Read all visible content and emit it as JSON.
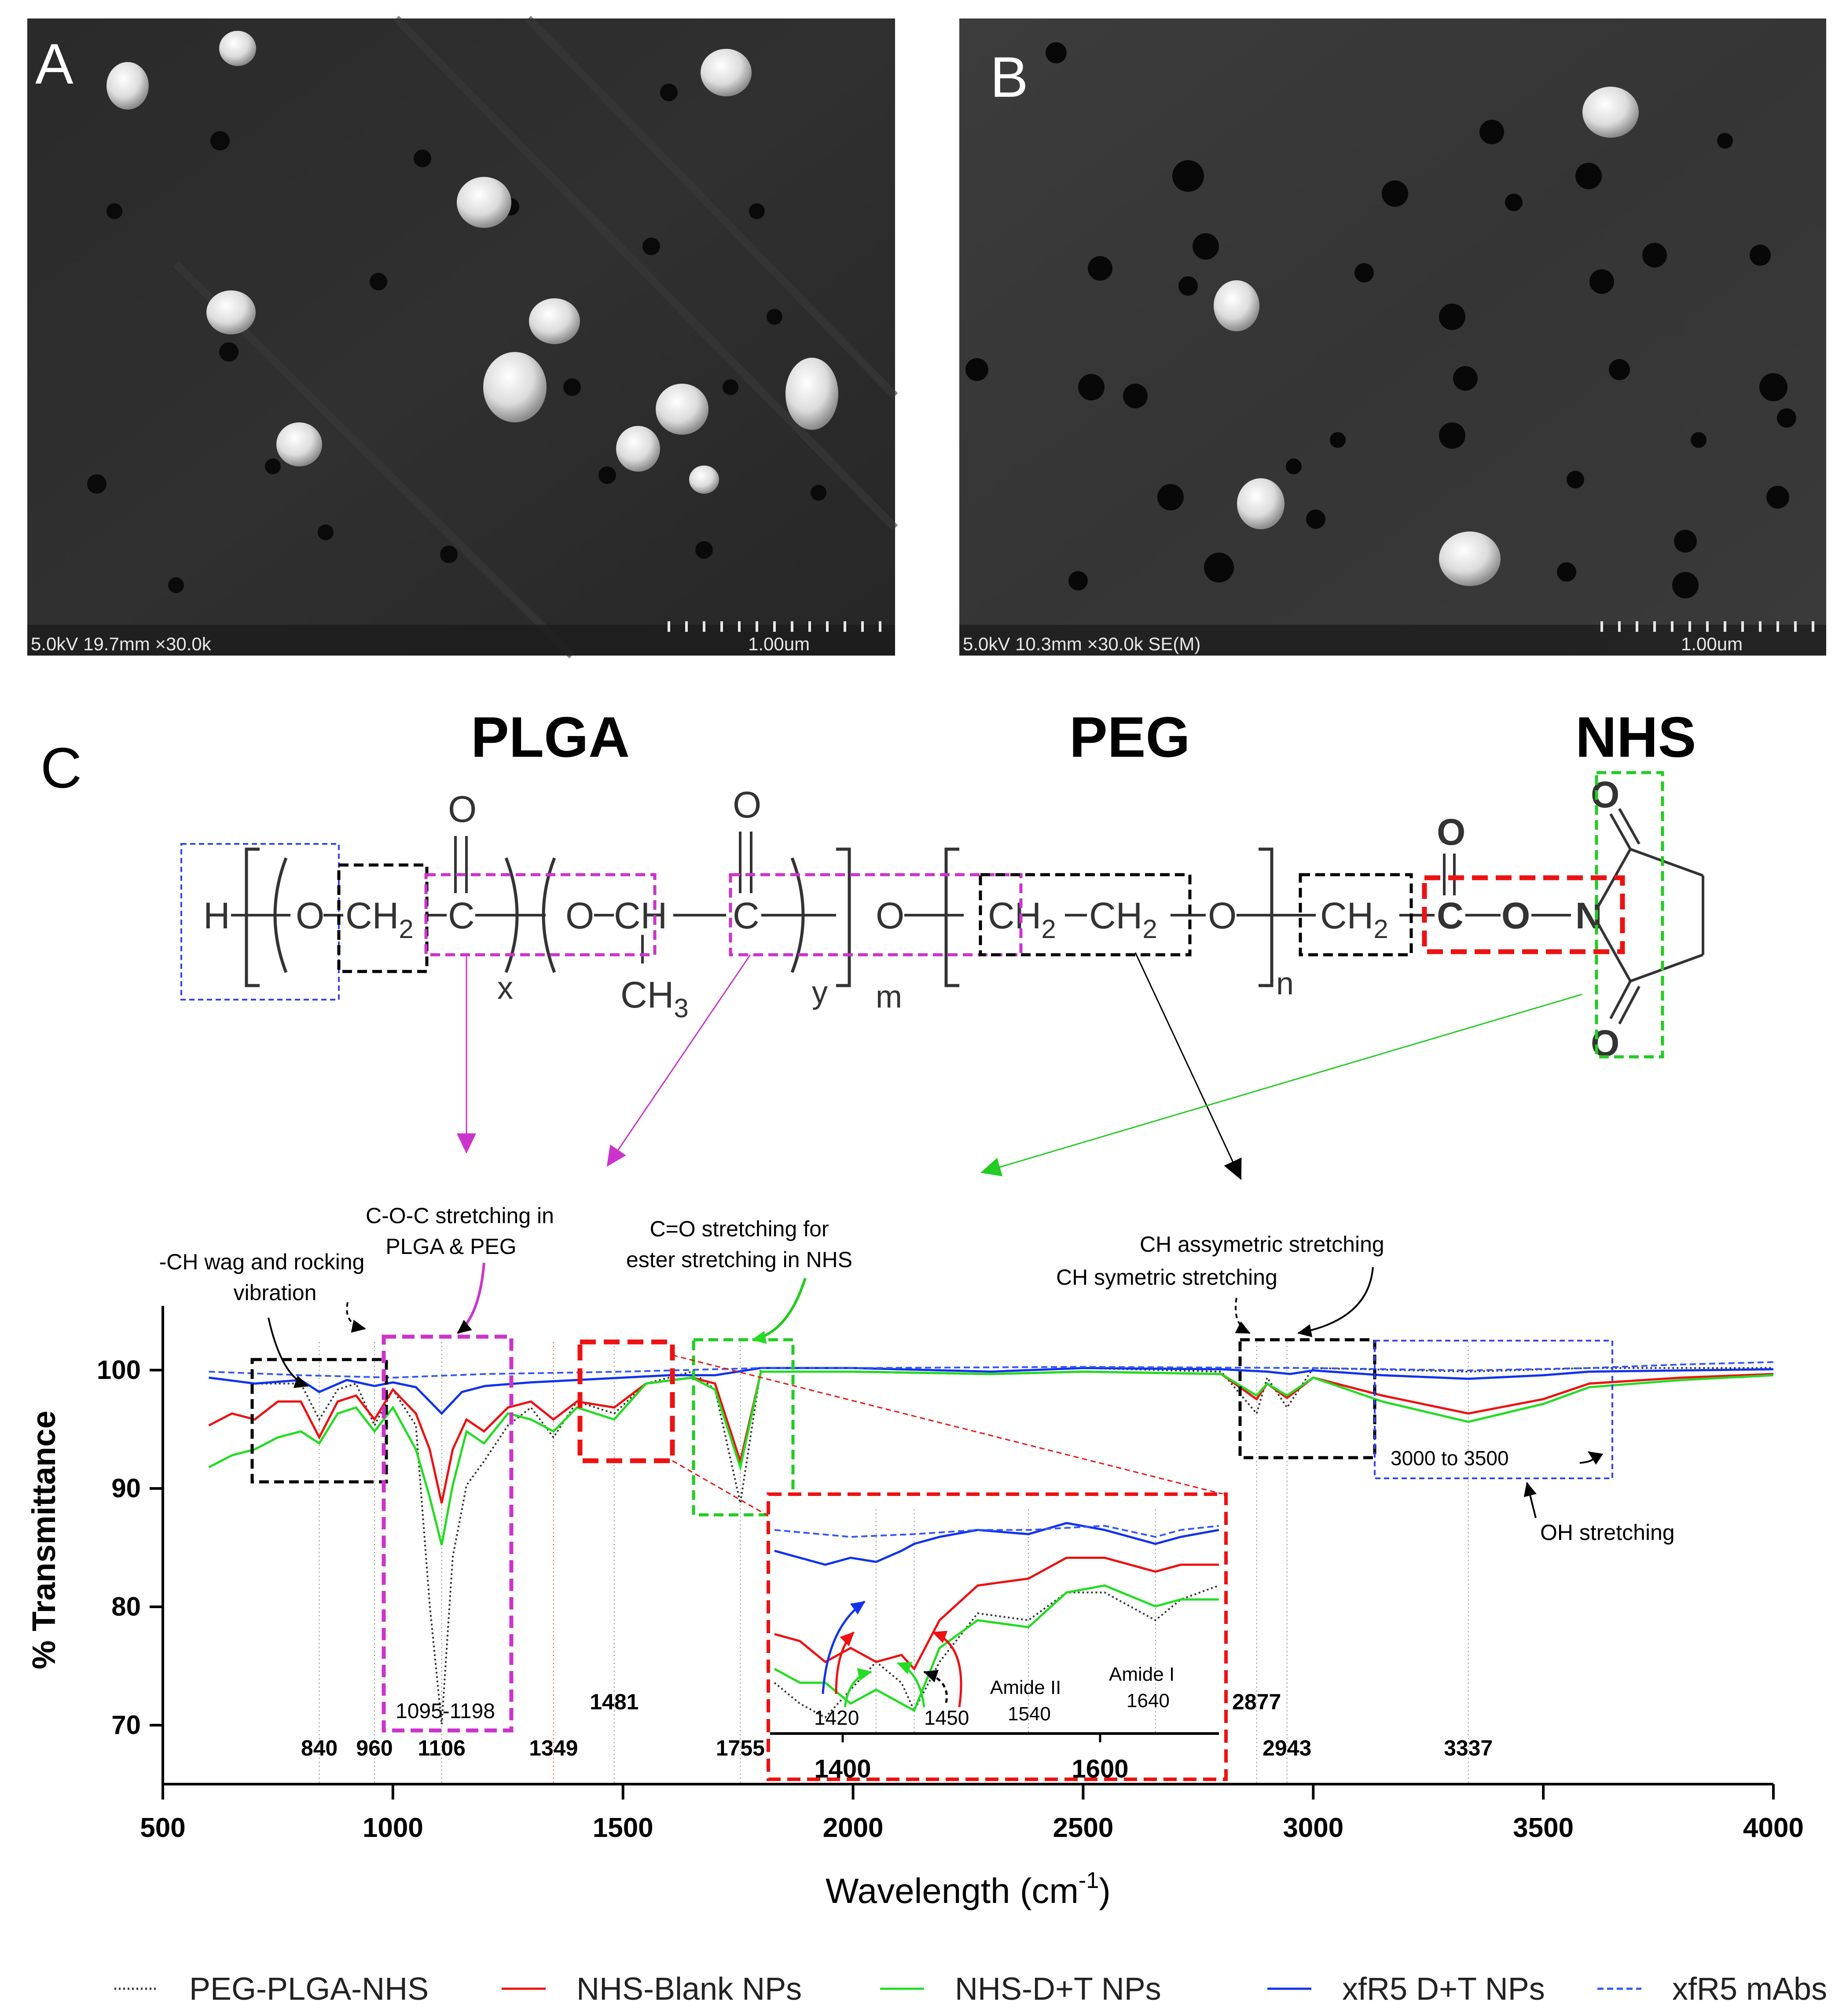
{
  "panels": {
    "a": {
      "letter": "A",
      "footer": "5.0kV 19.7mm ×30.0k",
      "scale_label": "1.00um"
    },
    "b": {
      "letter": "B",
      "footer": "5.0kV 10.3mm ×30.0k SE(M)",
      "scale_label": "1.00um"
    },
    "c": {
      "letter": "C"
    }
  },
  "structure": {
    "block_labels": [
      "PLGA",
      "PEG",
      "NHS"
    ],
    "atoms": {
      "H": "H",
      "O": "O",
      "CH2": "CH",
      "sub2": "2",
      "C": "C",
      "CH": "CH",
      "CH3": "CH",
      "sub3": "3",
      "N": "N",
      "x": "x",
      "y": "y",
      "m": "m",
      "n": "n"
    }
  },
  "annotations": {
    "ch_wag": [
      "-CH wag and rocking",
      "vibration"
    ],
    "coc": [
      "C-O-C stretching in",
      "PLGA & PEG"
    ],
    "co_ester": [
      "C=O stretching for",
      "ester stretching in NHS"
    ],
    "ch_asym": "CH assymetric stretching",
    "ch_sym": "CH symetric stretching",
    "range_3000": "3000 to 3500",
    "oh": "OH stretching",
    "range_1095": "1095-1198",
    "peaks": [
      "840",
      "960",
      "1106",
      "1349",
      "1481",
      "1755",
      "2877",
      "2943",
      "3337"
    ],
    "inset": {
      "peaks": [
        "1420",
        "1450"
      ],
      "amide2": "Amide II",
      "amide2_v": "1540",
      "amide1": "Amide I",
      "amide1_v": "1640",
      "ticks": [
        "1400",
        "1600"
      ]
    }
  },
  "colors": {
    "peg_plga_nhs": "#333333",
    "nhs_blank": "#ee1111",
    "nhs_dt": "#22dd22",
    "xfr5_dt": "#1133ee",
    "xfr5_mabs": "#3355ff",
    "magenta": "#cc33cc",
    "blue_box": "#3344ee"
  },
  "chart_data": {
    "type": "line",
    "xlabel": "Wavelength (cm",
    "xlabel_sup": "-1",
    "xlabel_end": ")",
    "ylabel": "% Transmittance",
    "xlim": [
      500,
      4000
    ],
    "ylim": [
      65,
      105
    ],
    "xticks": [
      500,
      1000,
      1500,
      2000,
      2500,
      3000,
      3500,
      4000
    ],
    "yticks": [
      70,
      80,
      90,
      100
    ],
    "legend_position": "bottom",
    "series": [
      {
        "name": "PEG-PLGA-NHS",
        "style": "dotted",
        "x": [
          600,
          700,
          800,
          840,
          880,
          920,
          960,
          1000,
          1050,
          1080,
          1106,
          1130,
          1160,
          1198,
          1250,
          1300,
          1349,
          1400,
          1481,
          1550,
          1650,
          1700,
          1755,
          1800,
          2000,
          2300,
          2500,
          2800,
          2877,
          2900,
          2943,
          3000,
          3337,
          3600,
          3800,
          4000
        ],
        "y": [
          99,
          98.5,
          98.5,
          95.5,
          98,
          98.5,
          95,
          98,
          95,
          80,
          70,
          84,
          90,
          92,
          95,
          96.5,
          94,
          97,
          96,
          98.5,
          99.5,
          98,
          88.5,
          99.8,
          99.8,
          99.5,
          99.8,
          99.5,
          96,
          99,
          96.5,
          99.8,
          99.5,
          99.8,
          99.8,
          99.8
        ]
      },
      {
        "name": "NHS-Blank NPs",
        "style": "solid",
        "x": [
          600,
          650,
          700,
          750,
          800,
          840,
          880,
          920,
          960,
          1000,
          1050,
          1080,
          1106,
          1130,
          1160,
          1198,
          1250,
          1300,
          1349,
          1400,
          1481,
          1550,
          1650,
          1700,
          1755,
          1800,
          2000,
          2300,
          2500,
          2800,
          2877,
          2900,
          2943,
          3000,
          3150,
          3337,
          3500,
          3600,
          3800,
          4000
        ],
        "y": [
          95,
          96,
          95.5,
          97,
          97,
          94,
          97,
          97.5,
          95.5,
          98,
          96,
          93,
          88.5,
          93,
          95.5,
          94.5,
          96.5,
          97,
          95.5,
          97,
          96.5,
          98.5,
          99,
          98.5,
          92,
          99.5,
          99.5,
          99.3,
          99.5,
          99.3,
          97.2,
          98.5,
          97.3,
          99,
          97.5,
          96,
          97.2,
          98.5,
          99,
          99.3
        ]
      },
      {
        "name": "NHS-D+T NPs",
        "style": "solid",
        "x": [
          600,
          650,
          700,
          750,
          800,
          840,
          880,
          920,
          960,
          1000,
          1050,
          1080,
          1106,
          1130,
          1160,
          1198,
          1250,
          1300,
          1349,
          1400,
          1481,
          1550,
          1650,
          1700,
          1755,
          1800,
          2000,
          2300,
          2500,
          2800,
          2877,
          2900,
          2943,
          3000,
          3150,
          3337,
          3500,
          3600,
          3800,
          4000
        ],
        "y": [
          91.5,
          92.5,
          93,
          94,
          94.5,
          93.5,
          96,
          96.5,
          94.5,
          96.5,
          93,
          89,
          85,
          90,
          94.5,
          93.5,
          96,
          95.5,
          94.5,
          96.5,
          95.5,
          98.5,
          99,
          98,
          91.5,
          99.5,
          99.5,
          99.3,
          99.5,
          99.3,
          97.5,
          98.5,
          97.5,
          99,
          97,
          95.3,
          96.8,
          98.2,
          98.8,
          99.2
        ]
      },
      {
        "name": "xfR5 D+T NPs",
        "style": "solid",
        "x": [
          600,
          700,
          800,
          840,
          900,
          960,
          1000,
          1050,
          1106,
          1150,
          1200,
          1300,
          1400,
          1500,
          1600,
          1700,
          1800,
          2000,
          2300,
          2500,
          2800,
          2900,
          2950,
          3000,
          3150,
          3337,
          3500,
          3600,
          3800,
          4000
        ],
        "y": [
          99,
          98.5,
          98.8,
          97.8,
          98.8,
          98.3,
          98.6,
          98.2,
          96,
          97.8,
          98.3,
          98.6,
          98.8,
          99,
          99.2,
          99.2,
          99.8,
          99.8,
          99.5,
          99.8,
          99.7,
          99.5,
          99.3,
          99.6,
          99.2,
          98.9,
          99.2,
          99.5,
          99.6,
          99.7
        ]
      },
      {
        "name": "xfR5 mAbs",
        "style": "dashed",
        "x": [
          600,
          800,
          1000,
          1200,
          1500,
          1800,
          2000,
          2500,
          3000,
          3337,
          3600,
          3800,
          4000
        ],
        "y": [
          99.5,
          99.2,
          99,
          99.3,
          99.5,
          99.8,
          99.8,
          99.9,
          99.8,
          99.6,
          99.8,
          100.1,
          100.3
        ]
      }
    ],
    "inset_series": [
      {
        "name": "PEG-PLGA-NHS",
        "x": [
          1340,
          1360,
          1380,
          1400,
          1420,
          1440,
          1450,
          1470,
          1500,
          1540,
          1570,
          1600,
          1640,
          1660,
          1690
        ],
        "y": [
          75.5,
          74,
          73,
          75,
          77,
          75.5,
          73.5,
          77,
          80.5,
          80,
          82,
          82,
          80,
          81.5,
          82.5
        ]
      },
      {
        "name": "NHS-Blank NPs",
        "x": [
          1340,
          1360,
          1380,
          1400,
          1420,
          1440,
          1450,
          1470,
          1500,
          1540,
          1570,
          1600,
          1640,
          1660,
          1690
        ],
        "y": [
          79,
          78.5,
          77,
          78,
          77,
          77.5,
          76.5,
          80,
          82.5,
          83,
          84.5,
          84.5,
          83.5,
          84,
          84
        ]
      },
      {
        "name": "NHS-D+T NPs",
        "x": [
          1340,
          1360,
          1380,
          1400,
          1420,
          1440,
          1450,
          1470,
          1500,
          1540,
          1570,
          1600,
          1640,
          1660,
          1690
        ],
        "y": [
          76.5,
          75.5,
          75.5,
          74,
          75,
          74,
          73.5,
          78,
          80,
          79.5,
          82,
          82.5,
          81,
          81.5,
          81.5
        ]
      },
      {
        "name": "xfR5 D+T NPs",
        "x": [
          1340,
          1360,
          1380,
          1400,
          1420,
          1440,
          1450,
          1470,
          1500,
          1540,
          1570,
          1600,
          1640,
          1660,
          1690
        ],
        "y": [
          85,
          84.5,
          84,
          84.5,
          84.2,
          85,
          85.5,
          86,
          86.5,
          86.2,
          87,
          86.5,
          85.5,
          86,
          86.5
        ]
      },
      {
        "name": "xfR5 mAbs",
        "x": [
          1340,
          1400,
          1450,
          1500,
          1540,
          1600,
          1640,
          1660,
          1690
        ],
        "y": [
          86.5,
          86,
          86.2,
          86.5,
          86.5,
          86.8,
          86,
          86.5,
          86.8
        ]
      }
    ]
  }
}
